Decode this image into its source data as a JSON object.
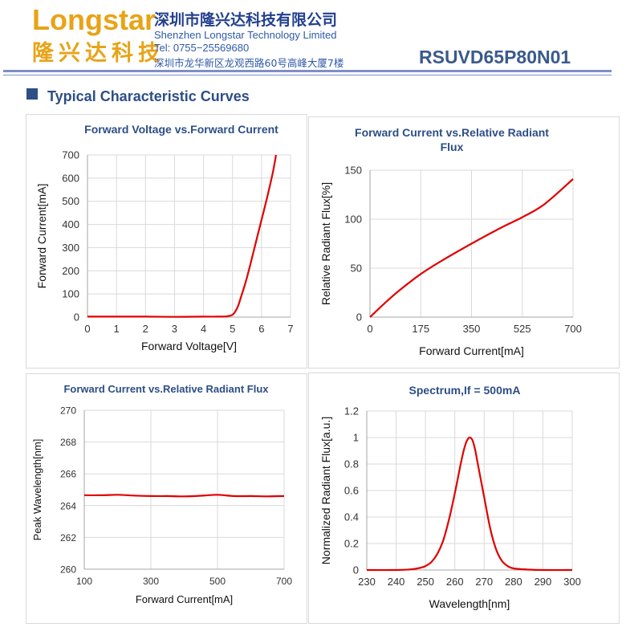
{
  "header": {
    "logo_en": "Longstar",
    "logo_cn": "隆兴达科技",
    "company_cn": "深圳市隆兴达科技有限公司",
    "company_en": "Shenzhen Longstar Technology Limited",
    "tel": "Tel: 0755−25569680",
    "address": "深圳市龙华新区龙观西路60号高峰大厦7楼",
    "part_number": "RSUVD65P80N01",
    "brand_color": "#e8a317",
    "accent_color": "#2d4e86"
  },
  "section": {
    "title": "Typical Characteristic Curves"
  },
  "chart_data": [
    {
      "type": "line",
      "title": "Forward Voltage vs.Forward Current",
      "xlabel": "Forward Voltage[V]",
      "ylabel": "Forward Current[mA]",
      "xlim": [
        0,
        7
      ],
      "ylim": [
        0,
        700
      ],
      "xticks": [
        0,
        1,
        2,
        3,
        4,
        5,
        6,
        7
      ],
      "yticks": [
        0,
        100,
        200,
        300,
        400,
        500,
        600,
        700
      ],
      "grid": true,
      "series": [
        {
          "color": "#e00000",
          "x": [
            0,
            1,
            2,
            3,
            4,
            4.5,
            4.8,
            5.0,
            5.1,
            5.2,
            5.3,
            5.45,
            5.6,
            5.8,
            6.0,
            6.2,
            6.4,
            6.5
          ],
          "y": [
            2,
            2,
            2,
            1,
            2,
            2,
            3,
            10,
            25,
            50,
            90,
            150,
            220,
            320,
            420,
            520,
            630,
            700
          ]
        }
      ]
    },
    {
      "type": "line",
      "title": "Forward Current vs.Relative Radiant Flux",
      "xlabel": "Forward Current[mA]",
      "ylabel": "Relative Radiant Flux[%]",
      "xlim": [
        0,
        700
      ],
      "ylim": [
        0,
        150
      ],
      "xticks": [
        0,
        175,
        350,
        525,
        700
      ],
      "yticks": [
        0,
        50,
        100,
        150
      ],
      "grid": true,
      "series": [
        {
          "color": "#e00000",
          "x": [
            0,
            50,
            100,
            175,
            250,
            350,
            450,
            525,
            600,
            700
          ],
          "y": [
            0,
            14,
            27,
            44,
            58,
            75,
            91,
            102,
            115,
            141
          ]
        }
      ]
    },
    {
      "type": "line",
      "title": "Forward Current vs.Relative Radiant Flux",
      "xlabel": "Forward Current[mA]",
      "ylabel": "Peak Wavelength[nm]",
      "xlim": [
        100,
        700
      ],
      "ylim": [
        260,
        270
      ],
      "xticks": [
        100,
        300,
        500,
        700
      ],
      "yticks": [
        260,
        262,
        264,
        266,
        268,
        270
      ],
      "grid": true,
      "series": [
        {
          "color": "#e00000",
          "x": [
            100,
            150,
            200,
            250,
            300,
            350,
            400,
            450,
            500,
            550,
            600,
            650,
            700
          ],
          "y": [
            264.65,
            264.65,
            264.68,
            264.63,
            264.6,
            264.6,
            264.58,
            264.62,
            264.68,
            264.6,
            264.6,
            264.58,
            264.6
          ]
        }
      ]
    },
    {
      "type": "line",
      "title": "Spectrum,If = 500mA",
      "xlabel": "Wavelength[nm]",
      "ylabel": "Normalized Radiant Flux[a.u.]",
      "xlim": [
        230,
        300
      ],
      "ylim": [
        0,
        1.2
      ],
      "xticks": [
        230,
        240,
        250,
        260,
        270,
        280,
        290,
        300
      ],
      "yticks": [
        0,
        0.2,
        0.4,
        0.6,
        0.8,
        1,
        1.2
      ],
      "ytick_labels": [
        "0",
        "0.2",
        "0.4",
        "0.6",
        "0.8",
        "1",
        "1.2"
      ],
      "grid": true,
      "series": [
        {
          "color": "#e00000",
          "x": [
            230,
            240,
            245,
            248,
            250,
            252,
            254,
            256,
            258,
            260,
            262,
            263,
            264,
            265,
            266,
            267,
            268,
            270,
            272,
            274,
            276,
            278,
            280,
            285,
            290,
            300
          ],
          "y": [
            0,
            0,
            0.005,
            0.015,
            0.03,
            0.06,
            0.12,
            0.22,
            0.38,
            0.58,
            0.8,
            0.9,
            0.97,
            1.0,
            0.98,
            0.9,
            0.78,
            0.55,
            0.32,
            0.16,
            0.07,
            0.03,
            0.012,
            0.003,
            0,
            0
          ]
        }
      ]
    }
  ]
}
